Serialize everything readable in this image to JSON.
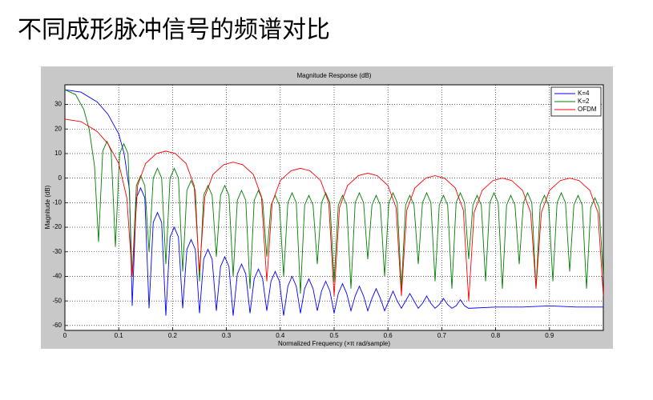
{
  "slide_title": "不同成形脉冲信号的频谱对比",
  "chart_data": {
    "type": "line",
    "title": "Magnitude Response (dB)",
    "xlabel": "Normalized Frequency (×π rad/sample)",
    "ylabel": "Magnitude (dB)",
    "xlim": [
      0,
      1
    ],
    "ylim": [
      -62,
      38
    ],
    "xticks": [
      0,
      0.1,
      0.2,
      0.3,
      0.4,
      0.5,
      0.6,
      0.7,
      0.8,
      0.9
    ],
    "yticks": [
      30,
      20,
      10,
      0,
      -10,
      -20,
      -30,
      -40,
      -50,
      -60
    ],
    "grid": true,
    "legend": "upper-right",
    "series": [
      {
        "name": "K=4",
        "color": "#0000ff",
        "x": [
          0,
          0.03,
          0.06,
          0.08,
          0.1,
          0.11,
          0.12,
          0.125,
          0.1328,
          0.1406,
          0.1484,
          0.1563,
          0.1641,
          0.1719,
          0.1797,
          0.1875,
          0.1953,
          0.2031,
          0.2109,
          0.2188,
          0.2266,
          0.2344,
          0.2422,
          0.25,
          0.2578,
          0.2656,
          0.2734,
          0.2813,
          0.2891,
          0.2969,
          0.3047,
          0.3125,
          0.3203,
          0.3281,
          0.3359,
          0.3438,
          0.3516,
          0.3594,
          0.3672,
          0.375,
          0.3828,
          0.3906,
          0.3984,
          0.4063,
          0.4141,
          0.4219,
          0.4297,
          0.4375,
          0.4453,
          0.4531,
          0.4609,
          0.4688,
          0.4766,
          0.4844,
          0.4922,
          0.5,
          0.5078,
          0.5156,
          0.5234,
          0.5313,
          0.5391,
          0.5469,
          0.5547,
          0.5625,
          0.5703,
          0.5781,
          0.5859,
          0.5938,
          0.6016,
          0.6094,
          0.6172,
          0.625,
          0.6328,
          0.6406,
          0.6484,
          0.6563,
          0.6641,
          0.6719,
          0.6797,
          0.6875,
          0.6953,
          0.7031,
          0.7109,
          0.7188,
          0.7266,
          0.7344,
          0.7422,
          0.75,
          0.8,
          0.85,
          0.9,
          0.95,
          1.0
        ],
        "values": [
          36,
          35,
          31,
          26,
          18,
          10,
          -5,
          -52,
          -8,
          -4,
          -8,
          -53,
          -18,
          -14,
          -18,
          -56,
          -24,
          -20,
          -24,
          -53,
          -29,
          -25,
          -29,
          -55,
          -33,
          -29,
          -33,
          -54,
          -36,
          -32,
          -36,
          -56,
          -39,
          -35,
          -39,
          -55,
          -41,
          -37,
          -41,
          -54,
          -42,
          -38,
          -42,
          -56,
          -44,
          -40,
          -44,
          -55,
          -45,
          -41,
          -45,
          -54,
          -46,
          -42,
          -46,
          -55,
          -47,
          -43,
          -47,
          -54,
          -48,
          -44,
          -48,
          -54,
          -49,
          -45,
          -49,
          -54,
          -50,
          -46,
          -50,
          -53,
          -50,
          -47,
          -50,
          -53,
          -51,
          -48,
          -51,
          -53,
          -51.5,
          -49,
          -51.5,
          -53,
          -52,
          -49.5,
          -52,
          -53,
          -52.5,
          -52.5,
          -52,
          -52.5,
          -52.5
        ]
      },
      {
        "name": "K=2",
        "color": "#008000",
        "x": [
          0,
          0.02,
          0.035,
          0.045,
          0.055,
          0.0625,
          0.0703,
          0.0781,
          0.0859,
          0.0938,
          0.1016,
          0.1094,
          0.1172,
          0.125,
          0.1328,
          0.1406,
          0.1484,
          0.1563,
          0.1641,
          0.1719,
          0.1797,
          0.1875,
          0.1953,
          0.2031,
          0.2109,
          0.2188,
          0.2266,
          0.2344,
          0.2422,
          0.25,
          0.2578,
          0.2656,
          0.2734,
          0.2813,
          0.2891,
          0.2969,
          0.3047,
          0.3125,
          0.3203,
          0.3281,
          0.3359,
          0.3438,
          0.3516,
          0.3594,
          0.3672,
          0.375,
          0.3828,
          0.3906,
          0.3984,
          0.4063,
          0.4141,
          0.4219,
          0.4297,
          0.4375,
          0.4453,
          0.4531,
          0.4609,
          0.4688,
          0.4766,
          0.4844,
          0.4922,
          0.5,
          0.5078,
          0.5156,
          0.5234,
          0.5313,
          0.5391,
          0.5469,
          0.5547,
          0.5625,
          0.5703,
          0.5781,
          0.5859,
          0.5938,
          0.6016,
          0.6094,
          0.6172,
          0.625,
          0.6328,
          0.6406,
          0.6484,
          0.6563,
          0.6641,
          0.6719,
          0.6797,
          0.6875,
          0.6953,
          0.7031,
          0.7109,
          0.7188,
          0.7266,
          0.7344,
          0.7422,
          0.75,
          0.7578,
          0.7656,
          0.7734,
          0.7813,
          0.7891,
          0.7969,
          0.8047,
          0.8125,
          0.8203,
          0.8281,
          0.8359,
          0.8438,
          0.8516,
          0.8594,
          0.8672,
          0.875,
          0.8828,
          0.8906,
          0.8984,
          0.9063,
          0.9141,
          0.9219,
          0.9297,
          0.9375,
          0.9453,
          0.9531,
          0.9609,
          0.9688,
          0.9766,
          0.9844,
          0.9922,
          1.0
        ],
        "values": [
          36,
          34,
          28,
          20,
          5,
          -26,
          11,
          15,
          11,
          -28,
          10,
          14,
          10,
          -40,
          -3,
          1,
          -3,
          -30,
          0,
          4,
          0,
          -35,
          0,
          4,
          0,
          -38,
          -5,
          -1,
          -5,
          -42,
          -7,
          -3,
          -7,
          -32,
          -7,
          -3,
          -7,
          -40,
          -9,
          -5,
          -9,
          -45,
          -9,
          -5,
          -9,
          -32,
          -11,
          -7,
          -11,
          -40,
          -10,
          -6,
          -10,
          -47,
          -11,
          -7,
          -11,
          -35,
          -10,
          -6,
          -10,
          -42,
          -11,
          -7,
          -11,
          -45,
          -10,
          -6,
          -10,
          -33,
          -11,
          -7,
          -11,
          -40,
          -10,
          -6,
          -10,
          -45,
          -11,
          -7,
          -11,
          -35,
          -10,
          -6,
          -10,
          -42,
          -11,
          -7,
          -11,
          -45,
          -10,
          -6,
          -10,
          -33,
          -11,
          -7,
          -11,
          -42,
          -10,
          -6,
          -10,
          -45,
          -11,
          -7,
          -11,
          -35,
          -10,
          -6,
          -10,
          -45,
          -11,
          -7,
          -11,
          -42,
          -10,
          -6,
          -10,
          -38,
          -11,
          -7,
          -11,
          -45,
          -12,
          -8,
          -12,
          -40
        ]
      },
      {
        "name": "OFDM",
        "color": "#ff0000",
        "x": [
          0,
          0.03,
          0.06,
          0.08,
          0.1,
          0.115,
          0.125,
          0.135,
          0.15,
          0.17,
          0.1875,
          0.205,
          0.225,
          0.24,
          0.25,
          0.26,
          0.275,
          0.295,
          0.3125,
          0.33,
          0.35,
          0.365,
          0.375,
          0.385,
          0.4,
          0.42,
          0.4375,
          0.455,
          0.475,
          0.49,
          0.5,
          0.51,
          0.525,
          0.545,
          0.5625,
          0.58,
          0.6,
          0.615,
          0.625,
          0.635,
          0.65,
          0.67,
          0.6875,
          0.705,
          0.725,
          0.74,
          0.75,
          0.76,
          0.775,
          0.795,
          0.8125,
          0.83,
          0.85,
          0.865,
          0.875,
          0.885,
          0.9,
          0.92,
          0.9375,
          0.955,
          0.975,
          0.99,
          1.0
        ],
        "values": [
          24,
          23,
          19,
          14,
          6,
          -8,
          -40,
          -3,
          6,
          10,
          11,
          10,
          6,
          -3,
          -38,
          -7.5,
          1.5,
          5.5,
          6.5,
          5.5,
          1.5,
          -7.5,
          -42,
          -10,
          -1,
          3,
          4,
          3,
          -1,
          -10,
          -48,
          -12,
          -3,
          1,
          2,
          1,
          -3,
          -12,
          -48,
          -13,
          -4,
          0,
          1,
          0,
          -4,
          -13,
          -50,
          -14,
          -5,
          -1,
          0,
          -1,
          -5,
          -14,
          -45,
          -14,
          -5,
          -1,
          0,
          -1,
          -5,
          -14,
          -48
        ]
      }
    ]
  }
}
